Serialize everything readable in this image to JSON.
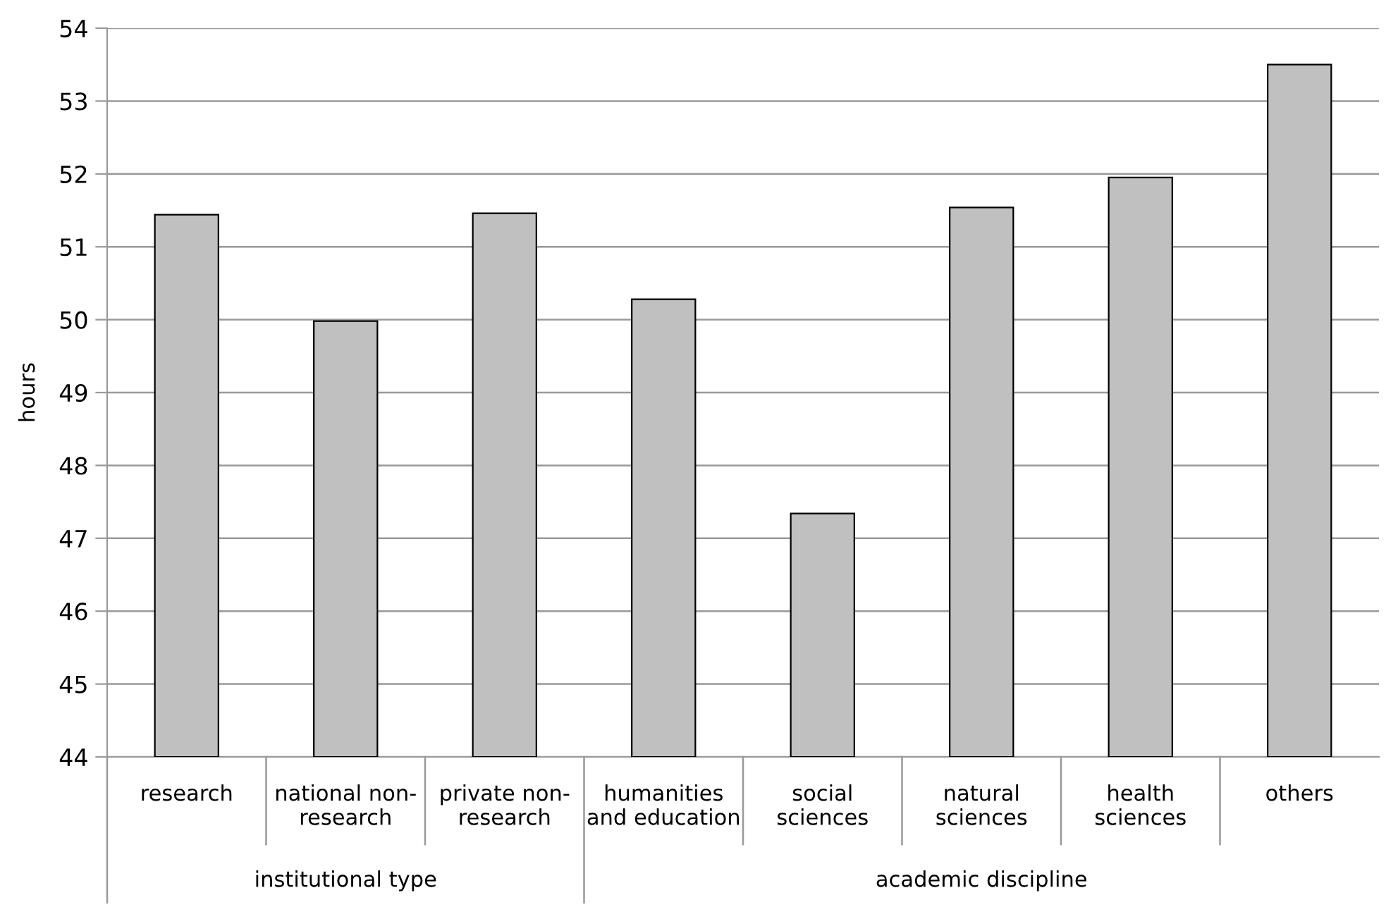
{
  "chart_data": {
    "type": "bar",
    "ylabel": "hours",
    "categories": [
      "research",
      "national non-\nresearch",
      "private non-\nresearch",
      "humanities\nand education",
      "social\nsciences",
      "natural\nsciences",
      "health\nsciences",
      "others"
    ],
    "values": [
      51.44,
      49.98,
      51.46,
      50.28,
      47.34,
      51.54,
      51.95,
      53.5
    ],
    "color": "#c0c0c0",
    "ylim": [
      44,
      54
    ],
    "yticks": [
      44,
      45,
      46,
      47,
      48,
      49,
      50,
      51,
      52,
      53,
      54
    ],
    "grid": "y",
    "annotations": [
      "institutional type",
      "academic discipline"
    ]
  }
}
